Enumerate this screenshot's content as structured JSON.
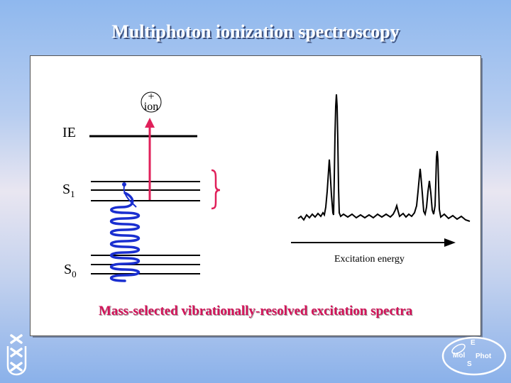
{
  "title": "Multiphoton ionization spectroscopy",
  "levels": {
    "ie": "IE",
    "s1": "S",
    "s1_sub": "1",
    "s0": "S",
    "s0_sub": "0"
  },
  "ion": {
    "plus": "+",
    "label": "ion"
  },
  "spectrum": {
    "xlabel": "Excitation energy"
  },
  "caption": "Mass-selected vibrationally-resolved excitation spectra",
  "logo": {
    "e": "E",
    "mol": "Mol",
    "phot": "Phot",
    "s": "S"
  },
  "colors": {
    "title": "#ffffff",
    "caption": "#d4145a",
    "arrow": "#e0205a",
    "wave": "#1a2fd0"
  }
}
